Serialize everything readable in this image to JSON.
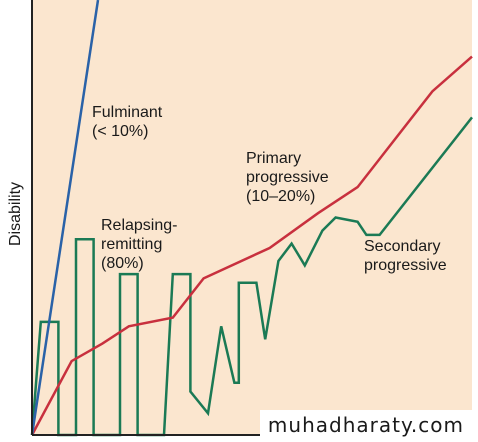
{
  "chart_data": {
    "type": "line",
    "title": "",
    "xlabel": "",
    "ylabel": "Disability",
    "xlim": [
      0,
      100
    ],
    "ylim": [
      0,
      100
    ],
    "grid": false,
    "legend": "none",
    "background": "#fbe6cf",
    "series": [
      {
        "name": "Fulminant\n(< 10%)",
        "label_lines": [
          "Fulminant",
          "(< 10%)"
        ],
        "color": "#2a62a8",
        "x": [
          0,
          15
        ],
        "y": [
          0,
          100
        ]
      },
      {
        "name": "Primary\nprogressive\n(10–20%)",
        "label_lines": [
          "Primary",
          "progressive",
          "(10–20%)"
        ],
        "color": "#c8303e",
        "x": [
          0,
          9,
          16,
          22,
          32,
          39,
          54,
          65,
          74,
          91,
          100
        ],
        "y": [
          0,
          17,
          21,
          25,
          27,
          36,
          43,
          51,
          57,
          79,
          87
        ]
      },
      {
        "name": "Secondary\nprogressive",
        "label_lines": [
          "Secondary",
          "progressive"
        ],
        "color": "#1b7a55",
        "x": [
          0,
          2,
          6,
          6,
          10,
          10,
          14,
          14,
          18,
          20,
          20,
          24,
          24,
          28,
          30,
          32,
          36,
          36,
          40,
          43,
          43,
          46,
          47,
          47,
          51,
          53,
          53,
          56,
          59,
          59,
          62,
          62,
          66,
          69,
          74,
          76,
          79,
          100
        ],
        "y": [
          0,
          26,
          26,
          0,
          0,
          45,
          45,
          0,
          0,
          0,
          37,
          37,
          0,
          0,
          0,
          37,
          37,
          10,
          5,
          25,
          25,
          12,
          12,
          35,
          35,
          22,
          22,
          40,
          44,
          44,
          39,
          39,
          47,
          50,
          49,
          46,
          46,
          73
        ]
      }
    ],
    "annotations": [
      {
        "text_lines": [
          "Relapsing-",
          "remitting",
          "(80%)"
        ]
      }
    ]
  },
  "watermark": "muhadharaty.com"
}
